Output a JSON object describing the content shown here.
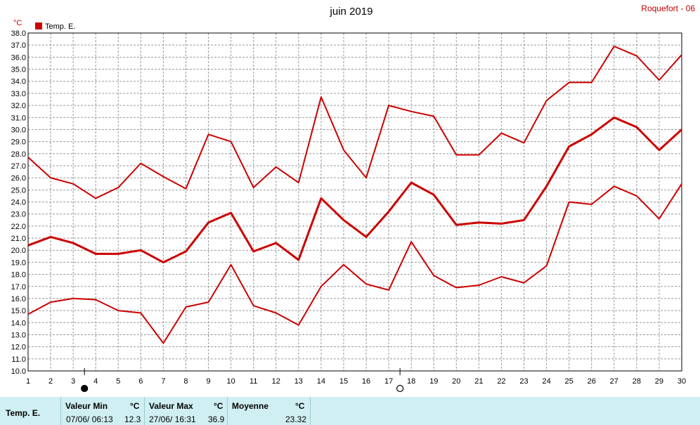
{
  "chart_data": {
    "type": "line",
    "title": "juin 2019",
    "station": "Roquefort - 06",
    "ylabel": "°C",
    "ylim": [
      10.0,
      38.0
    ],
    "xlim": [
      1,
      30
    ],
    "yticks": [
      "10.0",
      "11.0",
      "12.0",
      "13.0",
      "14.0",
      "15.0",
      "16.0",
      "17.0",
      "18.0",
      "19.0",
      "20.0",
      "21.0",
      "22.0",
      "23.0",
      "24.0",
      "25.0",
      "26.0",
      "27.0",
      "28.0",
      "29.0",
      "30.0",
      "31.0",
      "32.0",
      "33.0",
      "34.0",
      "35.0",
      "36.0",
      "37.0",
      "38.0"
    ],
    "xticks": [
      "1",
      "2",
      "3",
      "4",
      "5",
      "6",
      "7",
      "8",
      "9",
      "10",
      "11",
      "12",
      "13",
      "14",
      "15",
      "16",
      "17",
      "18",
      "19",
      "20",
      "21",
      "22",
      "23",
      "24",
      "25",
      "26",
      "27",
      "28",
      "29",
      "30"
    ],
    "grid": true,
    "legend": {
      "position": "top-left",
      "entries": [
        "Temp. E."
      ]
    },
    "color": "#cc0000",
    "x": [
      1,
      2,
      3,
      4,
      5,
      6,
      7,
      8,
      9,
      10,
      11,
      12,
      13,
      14,
      15,
      16,
      17,
      18,
      19,
      20,
      21,
      22,
      23,
      24,
      25,
      26,
      27,
      28,
      29,
      30
    ],
    "series": [
      {
        "name": "Temp. E.",
        "role": "max",
        "values": [
          27.7,
          26.0,
          25.5,
          24.3,
          25.2,
          27.2,
          26.1,
          25.1,
          29.6,
          29.0,
          25.2,
          26.9,
          25.6,
          32.7,
          28.3,
          26.0,
          32.0,
          31.5,
          31.1,
          27.9,
          27.9,
          29.7,
          28.9,
          32.4,
          33.9,
          33.9,
          36.9,
          36.1,
          34.1,
          36.2
        ]
      },
      {
        "role": "mean",
        "values": [
          20.4,
          21.1,
          20.6,
          19.7,
          19.7,
          20.0,
          19.0,
          19.9,
          22.3,
          23.1,
          19.9,
          20.6,
          19.2,
          24.3,
          22.5,
          21.1,
          23.2,
          25.6,
          24.6,
          22.1,
          22.3,
          22.2,
          22.5,
          25.3,
          28.6,
          29.6,
          31.0,
          30.2,
          28.3,
          30.0
        ]
      },
      {
        "role": "min",
        "values": [
          14.7,
          15.7,
          16.0,
          15.9,
          15.0,
          14.8,
          12.3,
          15.3,
          15.7,
          18.8,
          15.4,
          14.8,
          13.8,
          17.0,
          18.8,
          17.2,
          16.7,
          20.7,
          17.9,
          16.9,
          17.1,
          17.8,
          17.3,
          18.7,
          24.0,
          23.8,
          25.3,
          24.5,
          22.6,
          25.5
        ]
      }
    ],
    "moon_phases": [
      {
        "day": 3.5,
        "phase": "new",
        "icon": "new-moon-icon"
      },
      {
        "day": 17.5,
        "phase": "full",
        "icon": "full-moon-icon"
      }
    ]
  },
  "summary": {
    "series_name": "Temp. E.",
    "min": {
      "label": "Valeur Min",
      "unit": "°C",
      "date": "07/06/ 06:13",
      "value": "12.3"
    },
    "max": {
      "label": "Valeur Max",
      "unit": "°C",
      "date": "27/06/ 16:31",
      "value": "36.9"
    },
    "mean": {
      "label": "Moyenne",
      "unit": "°C",
      "value": "23.32"
    }
  }
}
